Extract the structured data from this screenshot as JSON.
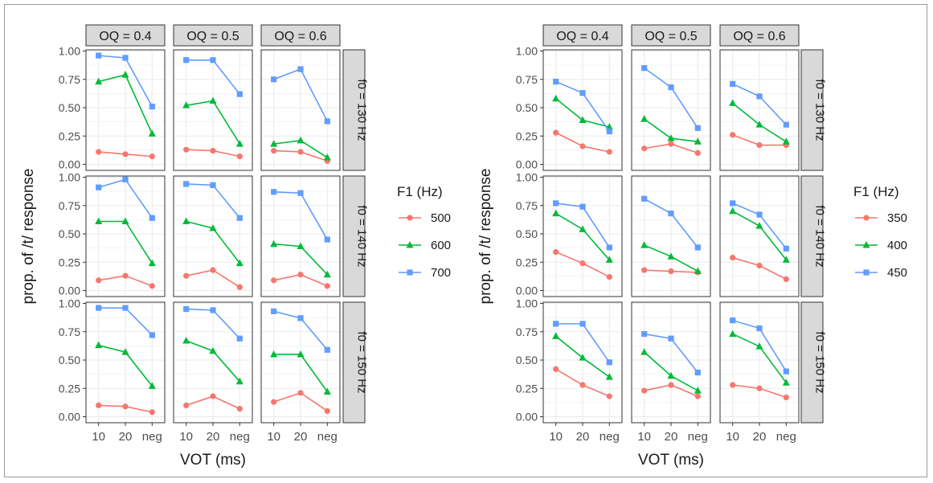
{
  "chart_data": [
    {
      "type": "line",
      "xlabel": "VOT (ms)",
      "ylabel": "prop. of /t/ response",
      "ylim": [
        0,
        1
      ],
      "y_ticks": [
        "0.00",
        "0.25",
        "0.50",
        "0.75",
        "1.00"
      ],
      "x_categories": [
        "10",
        "20",
        "neg"
      ],
      "column_facets": [
        "OQ = 0.4",
        "OQ = 0.5",
        "OQ = 0.6"
      ],
      "row_facets": [
        "f0 = 130 Hz",
        "f0 = 140 Hz",
        "f0 = 150 Hz"
      ],
      "legend": {
        "title": "F1 (Hz)",
        "position": "right",
        "entries": [
          {
            "name": "500",
            "color": "#F8766D",
            "marker": "circle"
          },
          {
            "name": "600",
            "color": "#00BA38",
            "marker": "triangle"
          },
          {
            "name": "700",
            "color": "#619CFF",
            "marker": "square"
          }
        ]
      },
      "panels": [
        [
          {
            "series": [
              [
                0.11,
                0.09,
                0.07
              ],
              [
                0.73,
                0.79,
                0.27
              ],
              [
                0.96,
                0.94,
                0.51
              ]
            ]
          },
          {
            "series": [
              [
                0.13,
                0.12,
                0.07
              ],
              [
                0.52,
                0.56,
                0.18
              ],
              [
                0.92,
                0.92,
                0.62
              ]
            ]
          },
          {
            "series": [
              [
                0.12,
                0.11,
                0.03
              ],
              [
                0.18,
                0.21,
                0.06
              ],
              [
                0.75,
                0.84,
                0.38
              ]
            ]
          }
        ],
        [
          {
            "series": [
              [
                0.09,
                0.13,
                0.04
              ],
              [
                0.61,
                0.61,
                0.24
              ],
              [
                0.91,
                0.98,
                0.64
              ]
            ]
          },
          {
            "series": [
              [
                0.13,
                0.18,
                0.03
              ],
              [
                0.61,
                0.55,
                0.24
              ],
              [
                0.94,
                0.93,
                0.64
              ]
            ]
          },
          {
            "series": [
              [
                0.09,
                0.14,
                0.04
              ],
              [
                0.41,
                0.39,
                0.14
              ],
              [
                0.87,
                0.86,
                0.45
              ]
            ]
          }
        ],
        [
          {
            "series": [
              [
                0.1,
                0.09,
                0.04
              ],
              [
                0.63,
                0.57,
                0.27
              ],
              [
                0.96,
                0.96,
                0.72
              ]
            ]
          },
          {
            "series": [
              [
                0.1,
                0.18,
                0.07
              ],
              [
                0.67,
                0.58,
                0.31
              ],
              [
                0.95,
                0.94,
                0.69
              ]
            ]
          },
          {
            "series": [
              [
                0.13,
                0.21,
                0.05
              ],
              [
                0.55,
                0.55,
                0.22
              ],
              [
                0.93,
                0.87,
                0.59
              ]
            ]
          }
        ]
      ]
    },
    {
      "type": "line",
      "xlabel": "VOT (ms)",
      "ylabel": "prop. of /t/ response",
      "ylim": [
        0,
        1
      ],
      "y_ticks": [
        "0.00",
        "0.25",
        "0.50",
        "0.75",
        "1.00"
      ],
      "x_categories": [
        "10",
        "20",
        "neg"
      ],
      "column_facets": [
        "OQ = 0.4",
        "OQ = 0.5",
        "OQ = 0.6"
      ],
      "row_facets": [
        "f0 = 130 Hz",
        "f0 = 140 Hz",
        "f0 = 150 Hz"
      ],
      "legend": {
        "title": "F1 (Hz)",
        "position": "right",
        "entries": [
          {
            "name": "350",
            "color": "#F8766D",
            "marker": "circle"
          },
          {
            "name": "400",
            "color": "#00BA38",
            "marker": "triangle"
          },
          {
            "name": "450",
            "color": "#619CFF",
            "marker": "square"
          }
        ]
      },
      "panels": [
        [
          {
            "series": [
              [
                0.28,
                0.16,
                0.11
              ],
              [
                0.58,
                0.39,
                0.33
              ],
              [
                0.73,
                0.63,
                0.29
              ]
            ]
          },
          {
            "series": [
              [
                0.14,
                0.18,
                0.1
              ],
              [
                0.4,
                0.23,
                0.2
              ],
              [
                0.85,
                0.68,
                0.32
              ]
            ]
          },
          {
            "series": [
              [
                0.26,
                0.17,
                0.17
              ],
              [
                0.54,
                0.35,
                0.2
              ],
              [
                0.71,
                0.6,
                0.35
              ]
            ]
          }
        ],
        [
          {
            "series": [
              [
                0.34,
                0.24,
                0.12
              ],
              [
                0.68,
                0.54,
                0.27
              ],
              [
                0.77,
                0.74,
                0.38
              ]
            ]
          },
          {
            "series": [
              [
                0.18,
                0.17,
                0.16
              ],
              [
                0.4,
                0.3,
                0.17
              ],
              [
                0.81,
                0.68,
                0.38
              ]
            ]
          },
          {
            "series": [
              [
                0.29,
                0.22,
                0.1
              ],
              [
                0.7,
                0.57,
                0.27
              ],
              [
                0.77,
                0.67,
                0.37
              ]
            ]
          }
        ],
        [
          {
            "series": [
              [
                0.42,
                0.28,
                0.18
              ],
              [
                0.71,
                0.52,
                0.35
              ],
              [
                0.82,
                0.82,
                0.48
              ]
            ]
          },
          {
            "series": [
              [
                0.23,
                0.28,
                0.18
              ],
              [
                0.57,
                0.36,
                0.23
              ],
              [
                0.73,
                0.69,
                0.39
              ]
            ]
          },
          {
            "series": [
              [
                0.28,
                0.25,
                0.17
              ],
              [
                0.73,
                0.62,
                0.3
              ],
              [
                0.85,
                0.78,
                0.4
              ]
            ]
          }
        ]
      ]
    }
  ]
}
